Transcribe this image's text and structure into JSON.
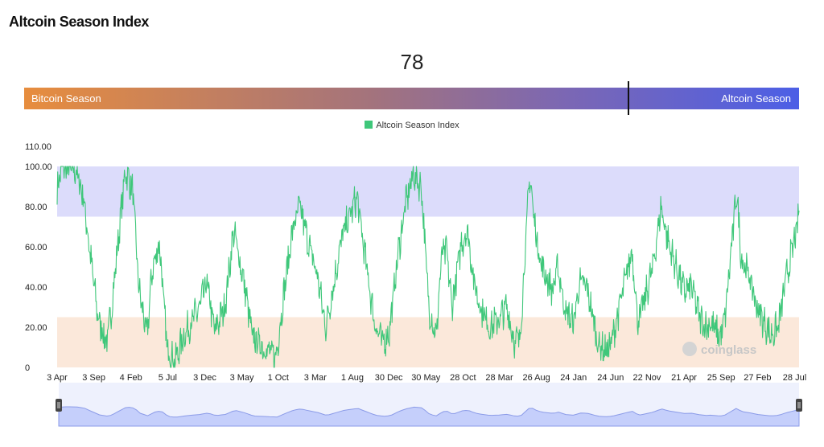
{
  "header": {
    "title": "Altcoin Season Index"
  },
  "gauge": {
    "current_value": "78",
    "value": 78,
    "min": 0,
    "max": 100,
    "left_label": "Bitcoin Season",
    "right_label": "Altcoin Season"
  },
  "watermark": "coinglass",
  "colors": {
    "line": "#3fc77a",
    "altcoin_zone": "#dcdcfb",
    "bitcoin_zone": "#fbe8da",
    "gauge_start": "#e78d3e",
    "gauge_end": "#4c5fe6",
    "navigator_fill": "#c5cffb",
    "navigator_line": "#8b9be8"
  },
  "chart_data": {
    "type": "line",
    "title": "Altcoin Season Index",
    "legend": [
      "Altcoin Season Index"
    ],
    "series": [
      {
        "name": "Altcoin Season Index",
        "anchors": [
          [
            0,
            88
          ],
          [
            0.6,
            100
          ],
          [
            2.5,
            98
          ],
          [
            3.5,
            86
          ],
          [
            4.5,
            55
          ],
          [
            5.5,
            25
          ],
          [
            6.7,
            12
          ],
          [
            7.3,
            28
          ],
          [
            8.2,
            62
          ],
          [
            9.2,
            98
          ],
          [
            10.2,
            88
          ],
          [
            11.0,
            40
          ],
          [
            12.1,
            15
          ],
          [
            12.8,
            48
          ],
          [
            13.8,
            62
          ],
          [
            14.8,
            10
          ],
          [
            15.9,
            3
          ],
          [
            17.0,
            15
          ],
          [
            18.0,
            22
          ],
          [
            19.0,
            28
          ],
          [
            20.2,
            42
          ],
          [
            21.2,
            18
          ],
          [
            22.6,
            30
          ],
          [
            23.8,
            68
          ],
          [
            25.3,
            40
          ],
          [
            26.3,
            15
          ],
          [
            27.3,
            12
          ],
          [
            28.4,
            8
          ],
          [
            29.5,
            5
          ],
          [
            30.6,
            38
          ],
          [
            31.7,
            68
          ],
          [
            32.7,
            80
          ],
          [
            33.8,
            63
          ],
          [
            35.1,
            45
          ],
          [
            36.2,
            20
          ],
          [
            37.2,
            40
          ],
          [
            38.4,
            65
          ],
          [
            39.4,
            75
          ],
          [
            40.4,
            85
          ],
          [
            41.7,
            50
          ],
          [
            42.8,
            22
          ],
          [
            43.9,
            12
          ],
          [
            44.8,
            18
          ],
          [
            45.9,
            55
          ],
          [
            46.9,
            80
          ],
          [
            48.0,
            96
          ],
          [
            49.1,
            90
          ],
          [
            50.1,
            30
          ],
          [
            51.1,
            15
          ],
          [
            51.8,
            55
          ],
          [
            52.5,
            58
          ],
          [
            53.2,
            30
          ],
          [
            54.5,
            62
          ],
          [
            55.3,
            68
          ],
          [
            56.3,
            40
          ],
          [
            57.3,
            28
          ],
          [
            58.3,
            20
          ],
          [
            59.6,
            24
          ],
          [
            60.6,
            30
          ],
          [
            61.7,
            12
          ],
          [
            62.4,
            15
          ],
          [
            63.7,
            96
          ],
          [
            64.4,
            70
          ],
          [
            65.3,
            50
          ],
          [
            66.8,
            38
          ],
          [
            67.5,
            50
          ],
          [
            68.5,
            28
          ],
          [
            69.6,
            22
          ],
          [
            70.4,
            42
          ],
          [
            71.4,
            40
          ],
          [
            72.9,
            12
          ],
          [
            74.0,
            8
          ],
          [
            74.7,
            12
          ],
          [
            75.8,
            30
          ],
          [
            76.5,
            42
          ],
          [
            77.5,
            58
          ],
          [
            78.3,
            22
          ],
          [
            79.3,
            35
          ],
          [
            80.3,
            50
          ],
          [
            81.4,
            80
          ],
          [
            82.4,
            62
          ],
          [
            83.4,
            50
          ],
          [
            84.5,
            38
          ],
          [
            85.5,
            40
          ],
          [
            86.6,
            25
          ],
          [
            87.5,
            20
          ],
          [
            88.0,
            22
          ],
          [
            89.4,
            15
          ],
          [
            90.0,
            24
          ],
          [
            91.6,
            88
          ],
          [
            92.2,
            55
          ],
          [
            93.3,
            45
          ],
          [
            94.3,
            30
          ],
          [
            95.3,
            22
          ],
          [
            96.2,
            16
          ],
          [
            97.2,
            20
          ],
          [
            98.3,
            45
          ],
          [
            99.3,
            62
          ],
          [
            99.8,
            70
          ],
          [
            100,
            78
          ]
        ]
      }
    ],
    "x": {
      "label": "",
      "range": [
        0,
        100
      ],
      "ticks": [
        {
          "label": "3 Apr",
          "value": 0
        },
        {
          "label": "3 Sep",
          "value": 4.95
        },
        {
          "label": "4 Feb",
          "value": 9.95
        },
        {
          "label": "5 Jul",
          "value": 14.9
        },
        {
          "label": "3 Dec",
          "value": 19.9
        },
        {
          "label": "3 May",
          "value": 24.9
        },
        {
          "label": "1 Oct",
          "value": 29.8
        },
        {
          "label": "3 Mar",
          "value": 34.8
        },
        {
          "label": "1 Aug",
          "value": 39.8
        },
        {
          "label": "30 Dec",
          "value": 44.7
        },
        {
          "label": "30 May",
          "value": 49.7
        },
        {
          "label": "28 Oct",
          "value": 54.7
        },
        {
          "label": "28 Mar",
          "value": 59.6
        },
        {
          "label": "26 Aug",
          "value": 64.6
        },
        {
          "label": "24 Jan",
          "value": 69.6
        },
        {
          "label": "24 Jun",
          "value": 74.6
        },
        {
          "label": "22 Nov",
          "value": 79.5
        },
        {
          "label": "21 Apr",
          "value": 84.5
        },
        {
          "label": "25 Sep",
          "value": 89.5
        },
        {
          "label": "27 Feb",
          "value": 94.4
        },
        {
          "label": "28 Jul",
          "value": 99.4
        }
      ]
    },
    "y": {
      "label": "",
      "range": [
        0,
        110
      ],
      "ticks": [
        {
          "label": "0",
          "value": 0
        },
        {
          "label": "20.00",
          "value": 20
        },
        {
          "label": "40.00",
          "value": 40
        },
        {
          "label": "60.00",
          "value": 60
        },
        {
          "label": "80.00",
          "value": 80
        },
        {
          "label": "100.00",
          "value": 100
        },
        {
          "label": "110.00",
          "value": 110
        }
      ]
    },
    "bands": [
      {
        "name": "altcoin-season-zone",
        "from": 75,
        "to": 100
      },
      {
        "name": "bitcoin-season-zone",
        "from": 0,
        "to": 25
      }
    ],
    "grid": false,
    "legend_position": "top-center"
  }
}
